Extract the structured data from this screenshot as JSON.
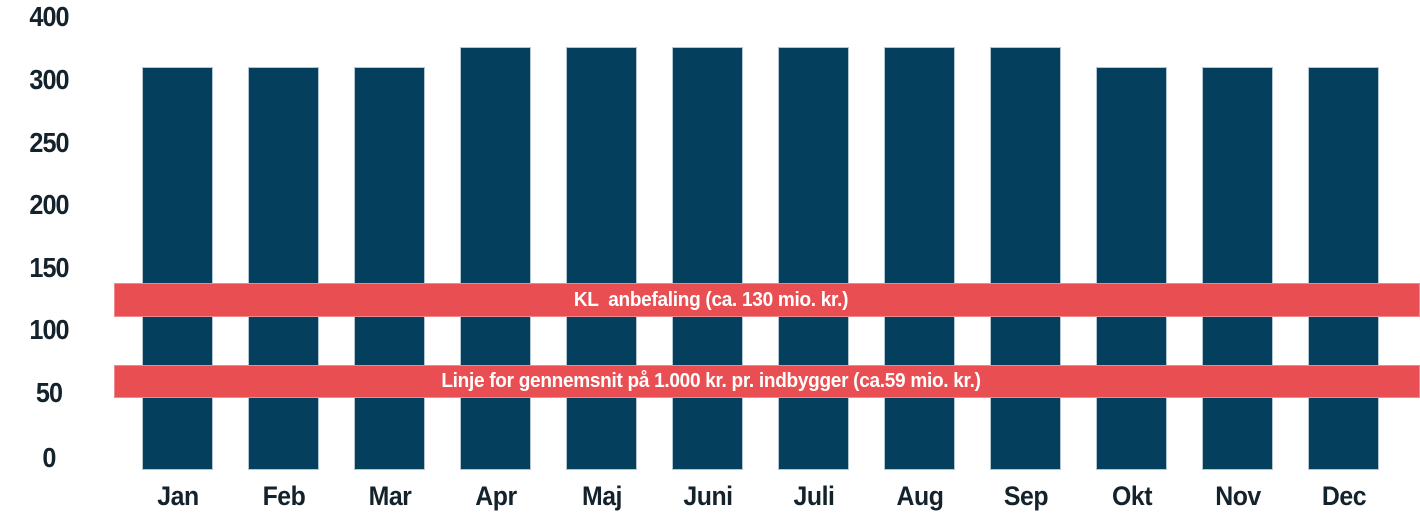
{
  "chart_data": {
    "type": "bar",
    "title": "",
    "xlabel": "",
    "ylabel": "",
    "unit": "mio. kr.",
    "categories": [
      "Jan",
      "Feb",
      "Mar",
      "Apr",
      "Maj",
      "Juni",
      "Juli",
      "Aug",
      "Sep",
      "Okt",
      "Nov",
      "Dec"
    ],
    "values": [
      310,
      310,
      310,
      325,
      325,
      325,
      325,
      325,
      325,
      310,
      310,
      310
    ],
    "y_tick_labels": [
      "400",
      "300",
      "250",
      "200",
      "150",
      "100",
      "50",
      "0"
    ],
    "ylim": [
      0,
      350
    ],
    "grid": false,
    "legend_position": "none",
    "reference_bands": [
      {
        "name": "kl-anbefaling",
        "label": "KL  anbefaling (ca. 130 mio. kr.)",
        "value": 130
      },
      {
        "name": "gennemsnit-indbygger",
        "label": "Linje for gennemsnit på 1.000 kr. pr. indbygger (ca.59 mio. kr.)",
        "value": 59
      }
    ],
    "colors": {
      "bar": "#04405e",
      "bar_border": "#b2c7d2",
      "band": "#e94f52",
      "band_border": "#f0898c",
      "band_text": "#ffffff",
      "axis_text": "#14222c",
      "background": "#ffffff"
    }
  }
}
